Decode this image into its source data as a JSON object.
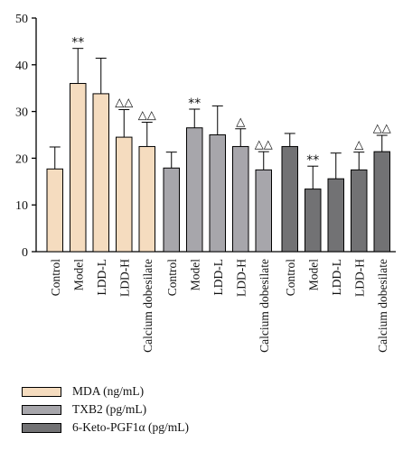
{
  "chart_data": {
    "type": "bar",
    "ylim": [
      0,
      50
    ],
    "yticks": [
      0,
      10,
      20,
      30,
      40,
      50
    ],
    "categories": [
      "Control",
      "Model",
      "LDD-L",
      "LDD-H",
      "Calcium dobesilate"
    ],
    "series": [
      {
        "name": "MDA (ng/mL)",
        "color": "#f5dcbf",
        "values": [
          17.7,
          36.0,
          33.8,
          24.5,
          22.5
        ],
        "errors": [
          4.7,
          7.5,
          7.6,
          5.9,
          5.2
        ],
        "annotations": [
          "",
          "**",
          "",
          "△△",
          "△△"
        ]
      },
      {
        "name": "TXB2 (pg/mL)",
        "color": "#a7a6ab",
        "values": [
          17.9,
          26.5,
          25.0,
          22.5,
          17.5
        ],
        "errors": [
          3.4,
          4.0,
          6.2,
          3.8,
          3.9
        ],
        "annotations": [
          "",
          "**",
          "",
          "△",
          "△△"
        ]
      },
      {
        "name": "6-Keto-PGF1α (pg/mL)",
        "color": "#727274",
        "values": [
          22.5,
          13.4,
          15.6,
          17.5,
          21.4
        ],
        "errors": [
          2.8,
          4.9,
          5.5,
          3.8,
          3.5
        ],
        "annotations": [
          "",
          "**",
          "",
          "△",
          "△△"
        ]
      }
    ]
  }
}
